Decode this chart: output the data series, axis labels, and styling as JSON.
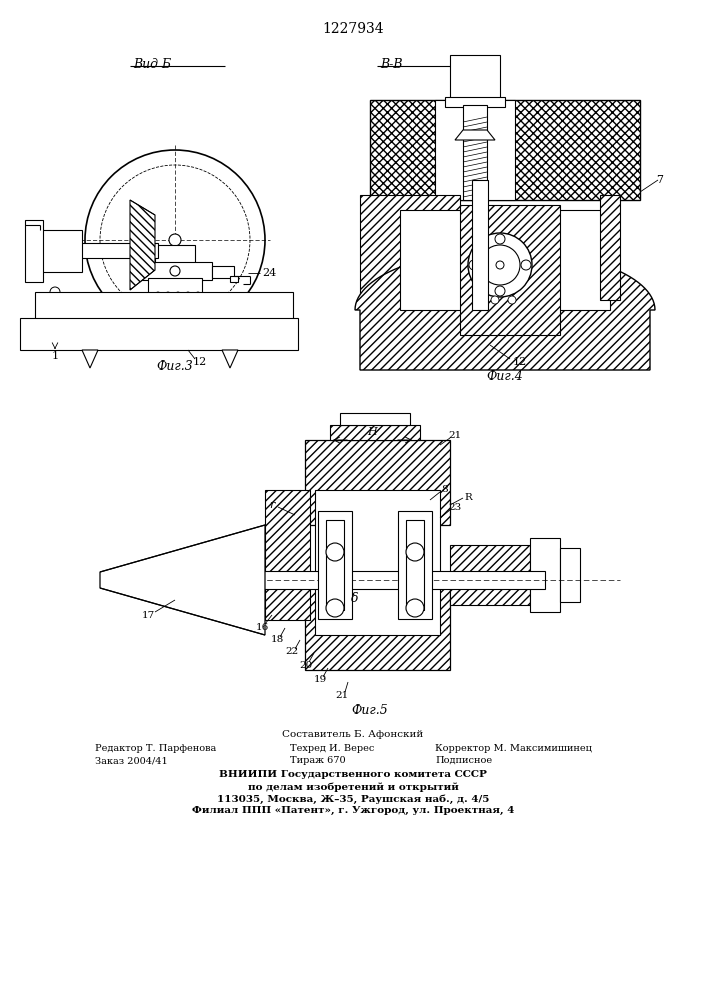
{
  "title": "1227934",
  "fig3_label": "Вид Б",
  "fig3_caption": "Фиг.3",
  "fig4_caption": "Фиг.4",
  "fig5_caption": "Фиг.5",
  "section_label": "В-В",
  "footer_line1": "Составитель Б. Афонский",
  "footer_line2_left": "Редактор Т. Парфенова",
  "footer_line2_mid": "Техред И. Верес",
  "footer_line2_right": "Корректор М. Максимишинец",
  "footer_line3_left": "Заказ 2004/41",
  "footer_line3_mid": "Тираж 670",
  "footer_line3_right": "Подписное",
  "footer_line4": "ВНИИПИ Государственного комитета СССР",
  "footer_line5": "по делам изобретений и открытий",
  "footer_line6": "113035, Москва, Ж–35, Раушская наб., д. 4/5",
  "footer_line7": "Филиал ППП «Патент», г. Ужгород, ул. Проектная, 4",
  "bg_color": "#ffffff",
  "line_color": "#000000"
}
